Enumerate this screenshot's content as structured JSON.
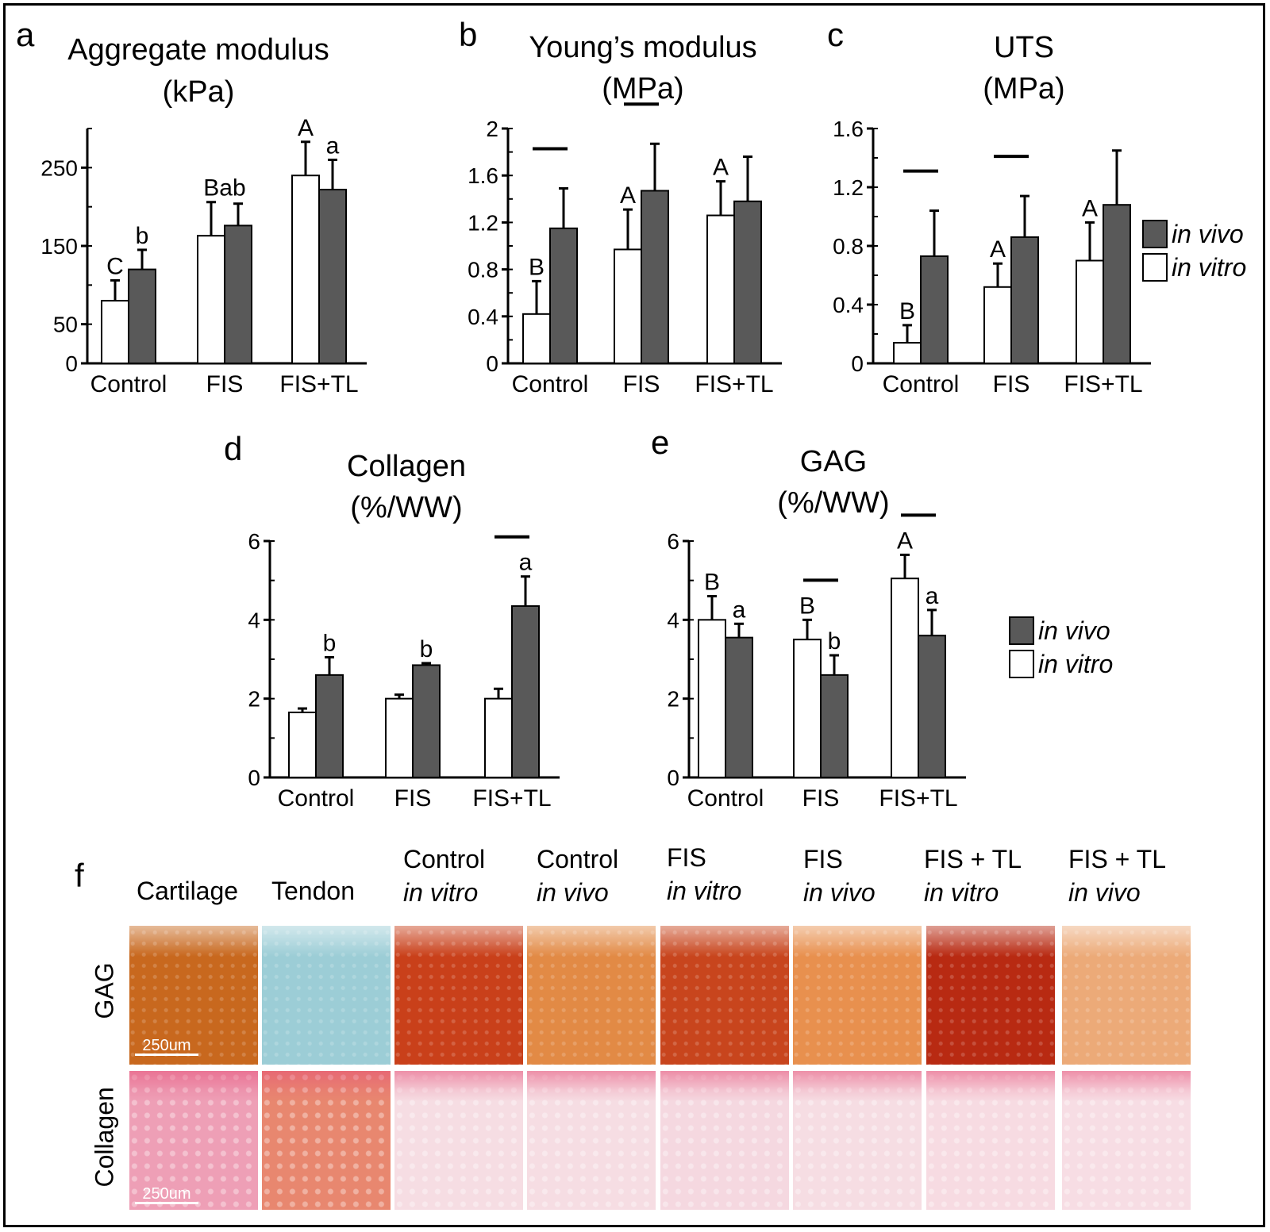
{
  "chart_data": [
    {
      "panel": "a",
      "type": "bar",
      "title": "Aggregate modulus",
      "unit": "(kPa)",
      "categories": [
        "Control",
        "FIS",
        "FIS+TL"
      ],
      "series": [
        {
          "name": "in vitro",
          "values": [
            80,
            163,
            240
          ],
          "errors": [
            26,
            43,
            43
          ],
          "letters": [
            "C",
            "B",
            "A"
          ]
        },
        {
          "name": "in vivo",
          "values": [
            120,
            176,
            222
          ],
          "errors": [
            25,
            28,
            38
          ],
          "letters": [
            "b",
            "ab",
            "a"
          ]
        }
      ],
      "yticks": [
        0,
        50,
        150,
        250
      ],
      "ylim": [
        0,
        300
      ],
      "letters_combined": [
        "",
        "Bab",
        ""
      ],
      "sig_bars": []
    },
    {
      "panel": "b",
      "type": "bar",
      "title": "Young’s modulus",
      "unit": "(MPa)",
      "categories": [
        "Control",
        "FIS",
        "FIS+TL"
      ],
      "series": [
        {
          "name": "in vitro",
          "values": [
            0.42,
            0.97,
            1.26
          ],
          "errors": [
            0.28,
            0.34,
            0.29
          ],
          "letters": [
            "B",
            "A",
            "A"
          ]
        },
        {
          "name": "in vivo",
          "values": [
            1.15,
            1.47,
            1.38
          ],
          "errors": [
            0.34,
            0.4,
            0.38
          ],
          "letters": [
            "",
            "",
            ""
          ]
        }
      ],
      "yticks": [
        0,
        0.4,
        0.8,
        1.2,
        1.6,
        2
      ],
      "ylim": [
        0,
        2
      ],
      "sig_bars": [
        0,
        1
      ]
    },
    {
      "panel": "c",
      "type": "bar",
      "title": "UTS",
      "unit": "(MPa)",
      "categories": [
        "Control",
        "FIS",
        "FIS+TL"
      ],
      "series": [
        {
          "name": "in vitro",
          "values": [
            0.14,
            0.52,
            0.7
          ],
          "errors": [
            0.12,
            0.16,
            0.26
          ],
          "letters": [
            "B",
            "A",
            "A"
          ]
        },
        {
          "name": "in vivo",
          "values": [
            0.73,
            0.86,
            1.08
          ],
          "errors": [
            0.31,
            0.28,
            0.37
          ],
          "letters": [
            "",
            "",
            ""
          ]
        }
      ],
      "yticks": [
        0,
        0.4,
        0.8,
        1.2,
        1.6
      ],
      "ylim": [
        0,
        1.6
      ],
      "sig_bars": [
        0,
        1
      ]
    },
    {
      "panel": "d",
      "type": "bar",
      "title": "Collagen",
      "unit": "(%/WW)",
      "categories": [
        "Control",
        "FIS",
        "FIS+TL"
      ],
      "series": [
        {
          "name": "in vitro",
          "values": [
            1.65,
            2.0,
            2.0
          ],
          "errors": [
            0.1,
            0.1,
            0.25
          ],
          "letters": [
            "",
            "",
            ""
          ]
        },
        {
          "name": "in vivo",
          "values": [
            2.6,
            2.85,
            4.35
          ],
          "errors": [
            0.45,
            0.05,
            0.75
          ],
          "letters": [
            "b",
            "b",
            "a"
          ]
        }
      ],
      "yticks": [
        0,
        2,
        4,
        6
      ],
      "ylim": [
        0,
        6
      ],
      "sig_bars": [
        2
      ]
    },
    {
      "panel": "e",
      "type": "bar",
      "title": "GAG",
      "unit": "(%/WW)",
      "categories": [
        "Control",
        "FIS",
        "FIS+TL"
      ],
      "series": [
        {
          "name": "in vitro",
          "values": [
            4.0,
            3.5,
            5.05
          ],
          "errors": [
            0.6,
            0.5,
            0.6
          ],
          "letters": [
            "B",
            "B",
            "A"
          ]
        },
        {
          "name": "in vivo",
          "values": [
            3.55,
            2.6,
            3.6
          ],
          "errors": [
            0.35,
            0.5,
            0.65
          ],
          "letters": [
            "a",
            "b",
            "a"
          ]
        }
      ],
      "yticks": [
        0,
        2,
        4,
        6
      ],
      "ylim": [
        0,
        6
      ],
      "sig_bars": [
        1,
        2
      ]
    }
  ],
  "legend": {
    "in_vivo": "in vivo",
    "in_vitro": "in vitro",
    "in_vivo_color": "#595959",
    "in_vitro_color": "#ffffff"
  },
  "histology": {
    "panel_letter": "f",
    "columns": [
      {
        "line1": "Cartilage",
        "line2": ""
      },
      {
        "line1": "Tendon",
        "line2": ""
      },
      {
        "line1": "Control",
        "line2": "in vitro"
      },
      {
        "line1": "Control",
        "line2": "in vivo"
      },
      {
        "line1": "FIS",
        "line2": "in vitro"
      },
      {
        "line1": "FIS",
        "line2": "in vivo"
      },
      {
        "line1": "FIS + TL",
        "line2": "in vitro"
      },
      {
        "line1": "FIS + TL",
        "line2": "in vivo"
      }
    ],
    "rows": [
      "GAG",
      "Collagen"
    ],
    "scale_bar": "250um",
    "gag_colors": [
      "#c8681e",
      "#9ccdd6",
      "#c9401a",
      "#e28a45",
      "#c8451d",
      "#e8904e",
      "#b82a12",
      "#ecaa78"
    ],
    "collagen_colors": [
      "#ee9fb6",
      "#e8876f",
      "#f6dde3",
      "#f6dde3",
      "#f5d8e0",
      "#f6dde3",
      "#f7dbe2",
      "#f7dde4"
    ]
  }
}
